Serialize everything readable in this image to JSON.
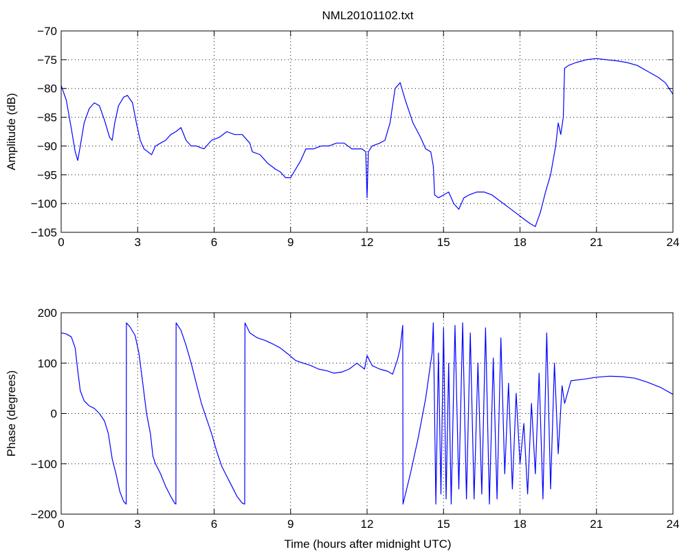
{
  "figure": {
    "title": "NML20101102.txt",
    "xlabel": "Time (hours after midnight UTC)"
  },
  "colors": {
    "series": "#0000ff",
    "axis": "#000000",
    "grid": "#000000",
    "background": "#ffffff"
  },
  "chart_data": [
    {
      "type": "line",
      "title": "NML20101102.txt",
      "xlabel": "",
      "ylabel": "Amplitude (dB)",
      "xlim": [
        0,
        24
      ],
      "ylim": [
        -105,
        -70
      ],
      "xticks": [
        0,
        3,
        6,
        9,
        12,
        15,
        18,
        21,
        24
      ],
      "yticks": [
        -105,
        -100,
        -95,
        -90,
        -85,
        -80,
        -75,
        -70
      ],
      "grid": true,
      "series": [
        {
          "x": [
            0,
            0.2,
            0.4,
            0.55,
            0.65,
            0.75,
            0.9,
            1.1,
            1.3,
            1.5,
            1.7,
            1.9,
            2.0,
            2.1,
            2.25,
            2.45,
            2.6,
            2.8,
            2.95,
            3.1,
            3.25,
            3.4,
            3.55,
            3.7,
            3.9,
            4.1,
            4.3,
            4.5,
            4.7,
            4.9,
            5.1,
            5.3,
            5.6,
            5.9,
            6.2,
            6.5,
            6.8,
            7.1,
            7.4,
            7.5,
            7.8,
            8.1,
            8.4,
            8.6,
            8.8,
            9.0,
            9.2,
            9.4,
            9.6,
            9.9,
            10.2,
            10.5,
            10.8,
            11.1,
            11.4,
            11.6,
            11.8,
            11.95,
            12.0,
            12.05,
            12.2,
            12.5,
            12.7,
            12.9,
            13.1,
            13.3,
            13.5,
            13.8,
            14.1,
            14.3,
            14.5,
            14.6,
            14.65,
            14.8,
            15.0,
            15.2,
            15.4,
            15.6,
            15.8,
            16.0,
            16.3,
            16.6,
            16.9,
            17.2,
            17.5,
            17.8,
            18.1,
            18.4,
            18.6,
            18.8,
            19.0,
            19.2,
            19.4,
            19.5,
            19.6,
            19.7,
            19.75,
            19.9,
            20.2,
            20.6,
            21.0,
            21.4,
            21.8,
            22.2,
            22.6,
            23.0,
            23.4,
            23.7,
            24.0
          ],
          "values": [
            -79.5,
            -82,
            -87,
            -91,
            -92.5,
            -90,
            -86,
            -83.5,
            -82.5,
            -83,
            -85.5,
            -88.5,
            -89,
            -86,
            -83,
            -81.5,
            -81.2,
            -82.5,
            -86,
            -89,
            -90.5,
            -91,
            -91.5,
            -90,
            -89.5,
            -89,
            -88,
            -87.5,
            -86.8,
            -89,
            -90,
            -90,
            -90.5,
            -89,
            -88.5,
            -87.5,
            -88,
            -88,
            -89.5,
            -91,
            -91.5,
            -93,
            -94,
            -94.5,
            -95.5,
            -95.5,
            -94,
            -92.5,
            -90.5,
            -90.5,
            -90,
            -90,
            -89.5,
            -89.5,
            -90.5,
            -90.5,
            -90.5,
            -91,
            -99,
            -91,
            -90,
            -89.5,
            -89,
            -86,
            -80,
            -79,
            -82,
            -86,
            -88.5,
            -90.5,
            -91,
            -93.5,
            -98.5,
            -99,
            -98.5,
            -98,
            -100,
            -101,
            -99,
            -98.5,
            -98,
            -98,
            -98.5,
            -99.5,
            -100.5,
            -101.5,
            -102.5,
            -103.5,
            -104,
            -101.5,
            -98,
            -95,
            -90,
            -86,
            -88,
            -85,
            -76.5,
            -76,
            -75.5,
            -75,
            -74.8,
            -75,
            -75.2,
            -75.5,
            -76,
            -77,
            -78,
            -79,
            -81
          ]
        }
      ]
    },
    {
      "type": "line",
      "title": "",
      "xlabel": "Time (hours after midnight UTC)",
      "ylabel": "Phase (degrees)",
      "xlim": [
        0,
        24
      ],
      "ylim": [
        -200,
        200
      ],
      "xticks": [
        0,
        3,
        6,
        9,
        12,
        15,
        18,
        21,
        24
      ],
      "yticks": [
        -200,
        -100,
        0,
        100,
        200
      ],
      "grid": true,
      "series": [
        {
          "x": [
            0,
            0.2,
            0.4,
            0.55,
            0.65,
            0.75,
            0.9,
            1.1,
            1.3,
            1.5,
            1.7,
            1.85,
            2.0,
            2.15,
            2.3,
            2.45,
            2.55,
            2.56,
            2.7,
            2.9,
            3.05,
            3.2,
            3.35,
            3.5,
            3.6,
            3.7,
            3.9,
            4.1,
            4.3,
            4.45,
            4.5,
            4.51,
            4.7,
            4.9,
            5.1,
            5.3,
            5.5,
            5.7,
            5.9,
            6.1,
            6.3,
            6.5,
            6.7,
            6.9,
            7.1,
            7.2,
            7.21,
            7.4,
            7.7,
            8.0,
            8.3,
            8.6,
            8.9,
            9.2,
            9.5,
            9.8,
            10.1,
            10.4,
            10.7,
            11.0,
            11.3,
            11.6,
            11.9,
            12.0,
            12.2,
            12.5,
            12.8,
            13.0,
            13.2,
            13.3,
            13.4,
            13.41,
            13.7,
            14.0,
            14.3,
            14.55,
            14.6,
            14.7,
            14.8,
            14.9,
            15.0,
            15.1,
            15.2,
            15.3,
            15.45,
            15.6,
            15.75,
            15.9,
            16.05,
            16.2,
            16.35,
            16.5,
            16.65,
            16.8,
            16.95,
            17.1,
            17.25,
            17.4,
            17.55,
            17.7,
            17.85,
            18.0,
            18.15,
            18.3,
            18.45,
            18.6,
            18.75,
            18.9,
            19.05,
            19.2,
            19.35,
            19.5,
            19.65,
            19.75,
            20.0,
            20.5,
            21.0,
            21.5,
            22.0,
            22.5,
            23.0,
            23.5,
            24.0
          ],
          "values": [
            160,
            158,
            152,
            130,
            85,
            45,
            25,
            15,
            10,
            0,
            -15,
            -40,
            -90,
            -120,
            -155,
            -175,
            -180,
            180,
            172,
            155,
            120,
            60,
            0,
            -40,
            -85,
            -100,
            -120,
            -145,
            -165,
            -178,
            -180,
            180,
            165,
            135,
            100,
            60,
            20,
            -10,
            -40,
            -75,
            -105,
            -125,
            -145,
            -165,
            -178,
            -180,
            180,
            160,
            150,
            145,
            138,
            130,
            118,
            105,
            100,
            95,
            88,
            85,
            80,
            82,
            88,
            100,
            88,
            115,
            95,
            88,
            84,
            78,
            108,
            130,
            175,
            -180,
            -120,
            -50,
            30,
            120,
            180,
            -180,
            120,
            -160,
            170,
            -170,
            100,
            -180,
            175,
            -150,
            180,
            -170,
            160,
            -170,
            100,
            -160,
            170,
            -180,
            110,
            -170,
            150,
            -120,
            60,
            -150,
            40,
            -100,
            -20,
            -160,
            20,
            -120,
            80,
            -170,
            160,
            -150,
            100,
            -80,
            55,
            20,
            65,
            68,
            72,
            74,
            73,
            70,
            62,
            52,
            38
          ]
        }
      ]
    }
  ]
}
